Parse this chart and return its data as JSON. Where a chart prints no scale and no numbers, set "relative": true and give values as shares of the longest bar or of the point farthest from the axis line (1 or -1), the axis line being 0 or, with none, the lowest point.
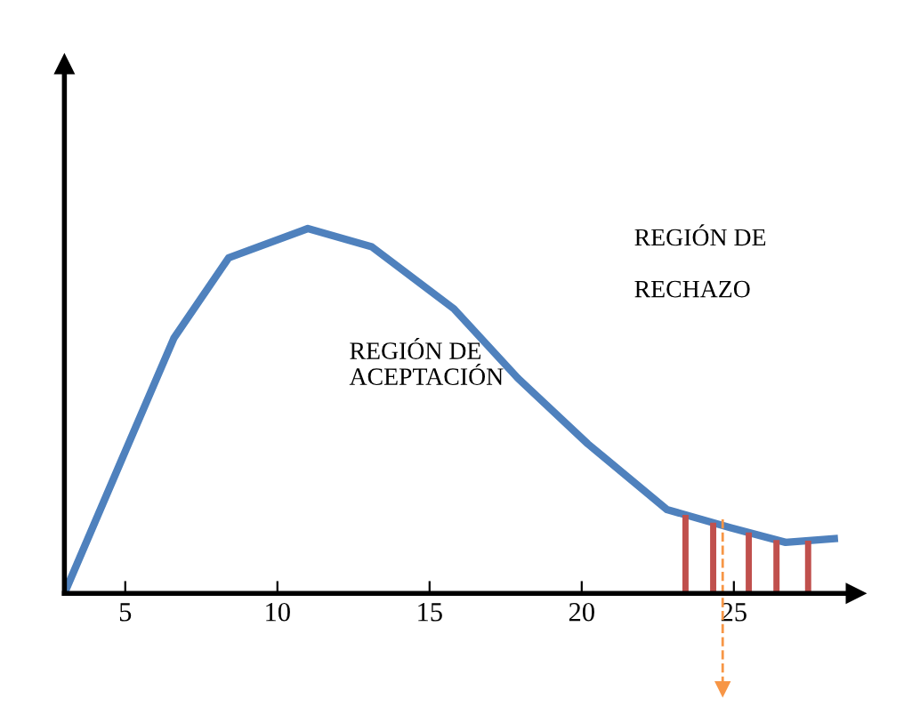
{
  "chart_data": {
    "type": "line",
    "relative": true,
    "x": [
      3,
      4.9,
      6.6,
      8.4,
      11.0,
      13.1,
      15.8,
      17.9,
      20.2,
      22.8,
      24.9,
      26.7,
      28.3
    ],
    "series": [
      {
        "color": "#4f81bd",
        "values": [
          0,
          0.37,
          0.7,
          0.92,
          1.0,
          0.95,
          0.78,
          0.59,
          0.41,
          0.23,
          0.18,
          0.14,
          0.15
        ]
      }
    ],
    "xlim": [
      3,
      29
    ],
    "xticks": [
      5,
      10,
      15,
      20,
      25
    ],
    "annotations": [
      "REGIÓN DE\nACEPTACIÓN",
      "REGIÓN DE\n\nRECHAZO"
    ],
    "grid": false,
    "legend": false,
    "marker": "none",
    "line_style": "solid"
  }
}
